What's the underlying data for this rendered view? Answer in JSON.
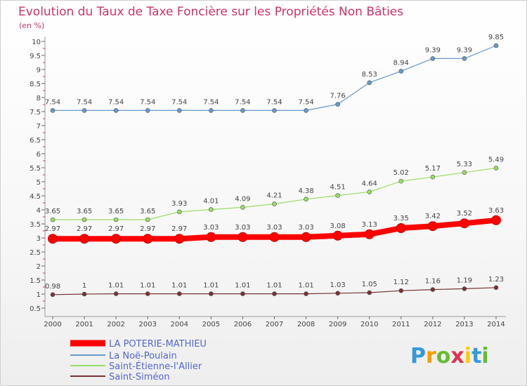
{
  "chart_data": {
    "type": "line",
    "title": "Evolution du Taux de Taxe Foncière sur les Propriétés Non Bâties",
    "subtitle": "(en %)",
    "x": [
      "2000",
      "2001",
      "2002",
      "2003",
      "2004",
      "2005",
      "2006",
      "2007",
      "2008",
      "2009",
      "2010",
      "2011",
      "2012",
      "2013",
      "2014"
    ],
    "y_ticks": [
      "0.5",
      "1",
      "1.5",
      "2",
      "2.5",
      "3",
      "3.5",
      "4",
      "4.5",
      "5",
      "5.5",
      "6",
      "6.5",
      "7",
      "7.5",
      "8",
      "8.5",
      "9",
      "9.5",
      "10"
    ],
    "ylim": [
      0.5,
      10
    ],
    "grid": false,
    "legend_position": "bottom-left",
    "series": [
      {
        "name": "LA POTERIE-MATHIEU",
        "color": "#ff0000",
        "values": [
          2.97,
          2.97,
          2.97,
          2.97,
          2.97,
          3.03,
          3.03,
          3.03,
          3.03,
          3.08,
          3.13,
          3.35,
          3.42,
          3.52,
          3.63
        ],
        "labels": [
          "2.97",
          "2.97",
          "2.97",
          "2.97",
          "2.97",
          "3.03",
          "3.03",
          "3.03",
          "3.03",
          "3.08",
          "3.13",
          "3.35",
          "3.42",
          "3.52",
          "3.63"
        ]
      },
      {
        "name": "La Noë-Poulain",
        "color": "#6699cc",
        "values": [
          7.54,
          7.54,
          7.54,
          7.54,
          7.54,
          7.54,
          7.54,
          7.54,
          7.54,
          7.76,
          8.53,
          8.94,
          9.39,
          9.39,
          9.85
        ],
        "labels": [
          "7.54",
          "7.54",
          "7.54",
          "7.54",
          "7.54",
          "7.54",
          "7.54",
          "7.54",
          "7.54",
          "7.76",
          "8.53",
          "8.94",
          "9.39",
          "9.39",
          "9.85"
        ]
      },
      {
        "name": "Saint-Étienne-l'Allier",
        "color": "#99dd66",
        "values": [
          3.65,
          3.65,
          3.65,
          3.65,
          3.93,
          4.01,
          4.09,
          4.21,
          4.38,
          4.51,
          4.64,
          5.02,
          5.17,
          5.33,
          5.49
        ],
        "labels": [
          "3.65",
          "3.65",
          "3.65",
          "3.65",
          "3.93",
          "4.01",
          "4.09",
          "4.21",
          "4.38",
          "4.51",
          "4.64",
          "5.02",
          "5.17",
          "5.33",
          "5.49"
        ]
      },
      {
        "name": "Saint-Siméon",
        "color": "#773333",
        "values": [
          0.98,
          1,
          1.01,
          1.01,
          1.01,
          1.01,
          1.01,
          1.01,
          1.01,
          1.03,
          1.05,
          1.12,
          1.16,
          1.19,
          1.23
        ],
        "labels": [
          "0.98",
          "1",
          "1.01",
          "1.01",
          "1.01",
          "1.01",
          "1.01",
          "1.01",
          "1.01",
          "1.03",
          "1.05",
          "1.12",
          "1.16",
          "1.19",
          "1.23"
        ]
      }
    ]
  },
  "logo": {
    "text": "Proxiti",
    "colors": [
      "#3399dd",
      "#ff9900",
      "#66bb33",
      "#dd3355",
      "#ffcc00",
      "#3399dd",
      "#66bb33"
    ]
  }
}
